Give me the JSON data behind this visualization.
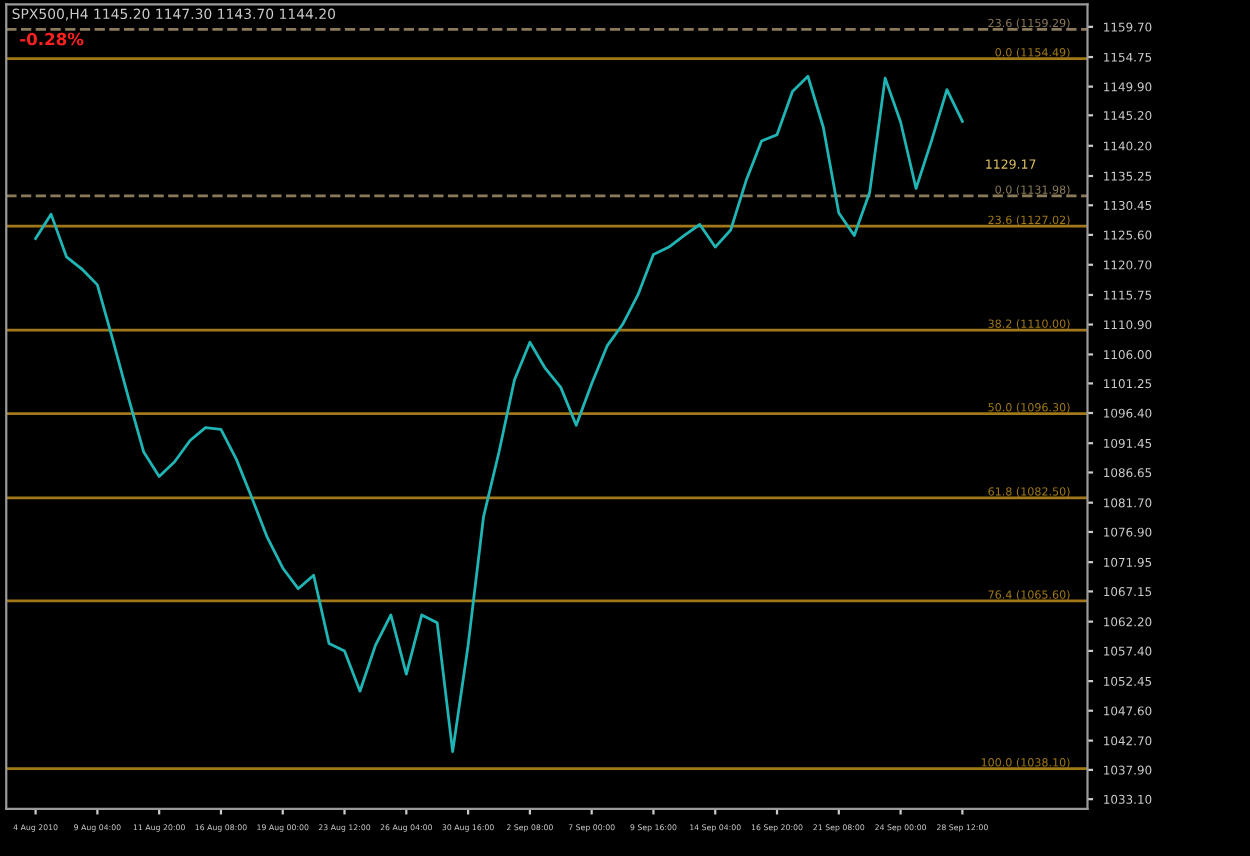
{
  "chart_data": {
    "type": "line",
    "title": "SPX500,H4 1145.20 1147.30 1143.70 1144.20",
    "subtitle": "-0.28%",
    "annotations": [
      "1129.17"
    ],
    "categories": [
      "4 Aug 2010",
      null,
      null,
      null,
      "9 Aug 04:00",
      null,
      null,
      null,
      "11 Aug 20:00",
      null,
      null,
      null,
      "16 Aug 08:00",
      null,
      null,
      null,
      "19 Aug 00:00",
      null,
      null,
      null,
      "23 Aug 12:00",
      null,
      null,
      null,
      "26 Aug 04:00",
      null,
      null,
      null,
      "30 Aug 16:00",
      null,
      null,
      null,
      "2 Sep 08:00",
      null,
      null,
      null,
      "7 Sep 00:00",
      null,
      null,
      null,
      "9 Sep 16:00",
      null,
      null,
      null,
      "14 Sep 04:00",
      null,
      null,
      null,
      "16 Sep 20:00",
      null,
      null,
      null,
      "21 Sep 08:00",
      null,
      null,
      null,
      "24 Sep 00:00",
      null,
      null,
      null,
      "28 Sep 12:00",
      null,
      null,
      null,
      null,
      null,
      null,
      null,
      null
    ],
    "series": [
      {
        "color": "#1fb5b5",
        "values": [
          1125,
          1129,
          1122,
          1120,
          1117.4,
          1108.4,
          1099,
          1090,
          1086,
          1088.4,
          1091.9,
          1094,
          1093.7,
          1088.8,
          1082.5,
          1076,
          1071,
          1067.6,
          1069.8,
          1058.6,
          1057.4,
          1050.8,
          1058.3,
          1063.3,
          1053.6,
          1063.3,
          1062,
          1040.9,
          1058.3,
          1079.4,
          1090,
          1101.8,
          1108,
          1103.7,
          1100.6,
          1094.4,
          1101.2,
          1107.4,
          1110.9,
          1115.8,
          1122.4,
          1123.6,
          1125.5,
          1127.3,
          1123.6,
          1126.4,
          1134.5,
          1141,
          1142,
          1149.1,
          1151.6,
          1143.2,
          1129.2,
          1125.5,
          1132.6,
          1151.3,
          1144.1,
          1133.2,
          1141,
          1149.4,
          1144.2,
          null,
          null,
          null,
          null,
          null,
          null,
          null,
          null
        ]
      }
    ],
    "ylim": [
      1031.5,
      1163.4
    ],
    "yticks": [
      {
        "value": 1033.1,
        "label": "1033.10"
      },
      {
        "value": 1037.9,
        "label": "1037.90"
      },
      {
        "value": 1042.7,
        "label": "1042.70"
      },
      {
        "value": 1047.6,
        "label": "1047.60"
      },
      {
        "value": 1052.45,
        "label": "1052.45"
      },
      {
        "value": 1057.4,
        "label": "1057.40"
      },
      {
        "value": 1062.2,
        "label": "1062.20"
      },
      {
        "value": 1067.15,
        "label": "1067.15"
      },
      {
        "value": 1071.95,
        "label": "1071.95"
      },
      {
        "value": 1076.9,
        "label": "1076.90"
      },
      {
        "value": 1081.7,
        "label": "1081.70"
      },
      {
        "value": 1086.65,
        "label": "1086.65"
      },
      {
        "value": 1091.45,
        "label": "1091.45"
      },
      {
        "value": 1096.4,
        "label": "1096.40"
      },
      {
        "value": 1101.25,
        "label": "1101.25"
      },
      {
        "value": 1106.0,
        "label": "1106.00"
      },
      {
        "value": 1110.9,
        "label": "1110.90"
      },
      {
        "value": 1115.75,
        "label": "1115.75"
      },
      {
        "value": 1120.7,
        "label": "1120.70"
      },
      {
        "value": 1125.6,
        "label": "1125.60"
      },
      {
        "value": 1130.45,
        "label": "1130.45"
      },
      {
        "value": 1135.25,
        "label": "1135.25"
      },
      {
        "value": 1140.2,
        "label": "1140.20"
      },
      {
        "value": 1145.2,
        "label": "1145.20"
      },
      {
        "value": 1149.9,
        "label": "1149.90"
      },
      {
        "value": 1154.75,
        "label": "1154.75"
      },
      {
        "value": 1159.7,
        "label": "1159.70"
      }
    ],
    "ref_lines": [
      {
        "axis": "y",
        "value": 1159.29,
        "label": "23.6 (1159.29)",
        "color": "#8a7a5a",
        "line_style": "dashed"
      },
      {
        "axis": "y",
        "value": 1154.49,
        "label": "0.0 (1154.49)",
        "color": "#a07818"
      },
      {
        "axis": "y",
        "value": 1131.98,
        "label": "0.0 (1131.98)",
        "color": "#8a7a5a",
        "line_style": "dashed"
      },
      {
        "axis": "y",
        "value": 1127.02,
        "label": "23.6 (1127.02)",
        "color": "#a07818"
      },
      {
        "axis": "y",
        "value": 1110.0,
        "label": "38.2 (1110.00)",
        "color": "#a07818"
      },
      {
        "axis": "y",
        "value": 1096.3,
        "label": "50.0 (1096.30)",
        "color": "#a07818"
      },
      {
        "axis": "y",
        "value": 1082.5,
        "label": "61.8 (1082.50)",
        "color": "#a07818"
      },
      {
        "axis": "y",
        "value": 1065.6,
        "label": "76.4 (1065.60)",
        "color": "#a07818"
      },
      {
        "axis": "y",
        "value": 1038.1,
        "label": "100.0 (1038.10)",
        "color": "#a07818"
      }
    ]
  }
}
